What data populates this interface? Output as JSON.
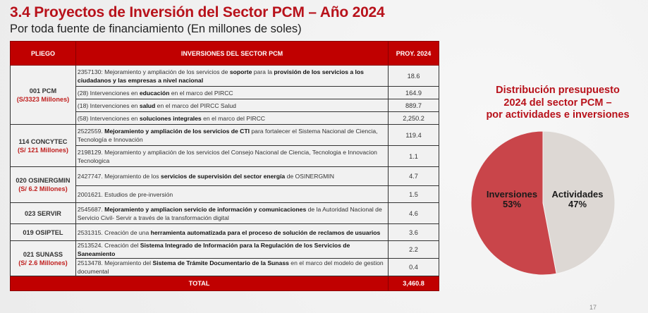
{
  "slide": {
    "title": "3.4 Proyectos de Inversión del Sector PCM – Año 2024",
    "subtitle": "Por toda fuente de financiamiento (En millones de soles)",
    "page_number": "17"
  },
  "table": {
    "headers": [
      "PLIEGO",
      "INVERSIONES DEL SECTOR PCM",
      "PROY. 2024"
    ],
    "groups": [
      {
        "pliego": "001 PCM",
        "amount": "(S/3323 Millones)",
        "rows": [
          {
            "pre": "2357130: Mejoramiento y ampliación de los servicios de ",
            "b1": "soporte",
            "mid": " para la ",
            "b2": "provisión de los servicios a los ciudadanos y las empresas a nivel nacional",
            "post": "",
            "value": "18.6"
          },
          {
            "pre": "(28) Intervenciones en ",
            "b1": "educación",
            "mid": " en el marco del PIRCC",
            "b2": "",
            "post": "",
            "value": "164.9"
          },
          {
            "pre": "(18) Intervenciones en ",
            "b1": "salud",
            "mid": " en el marco del PIRCC Salud",
            "b2": "",
            "post": "",
            "value": "889.7"
          },
          {
            "pre": "(58) Intervenciones en ",
            "b1": "soluciones integrales",
            "mid": " en el marco del PIRCC",
            "b2": "",
            "post": "",
            "value": "2,250.2"
          }
        ]
      },
      {
        "pliego": "114 CONCYTEC",
        "amount": "(S/ 121 Millones)",
        "rows": [
          {
            "pre": "2522559. ",
            "b1": "Mejoramiento y ampliación de los servicios de CTI",
            "mid": " para fortalecer el Sistema Nacional de Ciencia, Tecnología e Innovación",
            "b2": "",
            "post": "",
            "value": "119.4"
          },
          {
            "pre": "2198129. Mejoramiento y ampliación de los servicios del Consejo Nacional de Ciencia, Tecnologia e Innovacion Tecnologica",
            "b1": "",
            "mid": "",
            "b2": "",
            "post": "",
            "value": "1.1"
          }
        ]
      },
      {
        "pliego": "020 OSINERGMIN",
        "amount": "(S/ 6.2  Millones)",
        "rows": [
          {
            "pre": "2427747. Mejoramiento de los ",
            "b1": "servicios de supervisión del sector energía",
            "mid": " de OSINERGMIN",
            "b2": "",
            "post": "",
            "value": "4.7"
          },
          {
            "pre": "2001621. Estudios de pre-inversión",
            "b1": "",
            "mid": "",
            "b2": "",
            "post": "",
            "value": "1.5"
          }
        ]
      },
      {
        "pliego": "023 SERVIR",
        "amount": "",
        "rows": [
          {
            "pre": "2545687. ",
            "b1": "Mejoramiento y ampliacion servicio de información y comunicaciones",
            "mid": " de la Autoridad Nacional de Servicio Civil- Servir a través de la transformación digital",
            "b2": "",
            "post": "",
            "value": "4.6"
          }
        ]
      },
      {
        "pliego": "019 OSIPTEL",
        "amount": "",
        "rows": [
          {
            "pre": "2531315. Creación de una ",
            "b1": "herramienta automatizada para el proceso de solución de reclamos de usuarios",
            "mid": "",
            "b2": "",
            "post": "",
            "value": "3.6"
          }
        ]
      },
      {
        "pliego": "021 SUNASS",
        "amount": "(S/ 2.6  Millones)",
        "rows": [
          {
            "pre": "2513524. Creación del ",
            "b1": "Sistema Integrado de Información para la Regulación de los Servicios de Saneamiento",
            "mid": "",
            "b2": "",
            "post": "",
            "value": "2.2"
          },
          {
            "pre": "2513478. Mejoramiento del ",
            "b1": "Sistema de Trámite Documentario de la Sunass",
            "mid": " en el marco del modelo de gestion documental",
            "b2": "",
            "post": "",
            "value": "0.4"
          }
        ]
      }
    ],
    "total_label": "TOTAL",
    "total_value": "3,460.8"
  },
  "chart_data": {
    "type": "pie",
    "title": "Distribución presupuesto 2024 del sector PCM – por actividades e inversiones",
    "title_lines": [
      "Distribución presupuesto",
      "2024 del sector PCM –",
      "por actividades e inversiones"
    ],
    "categories": [
      "Inversiones",
      "Actividades"
    ],
    "values": [
      53,
      47
    ],
    "labels": [
      "53%",
      "47%"
    ],
    "colors": [
      "#c9454a",
      "#ddd8d4"
    ]
  },
  "colors": {
    "accent": "#c00000",
    "title": "#b8121b"
  }
}
